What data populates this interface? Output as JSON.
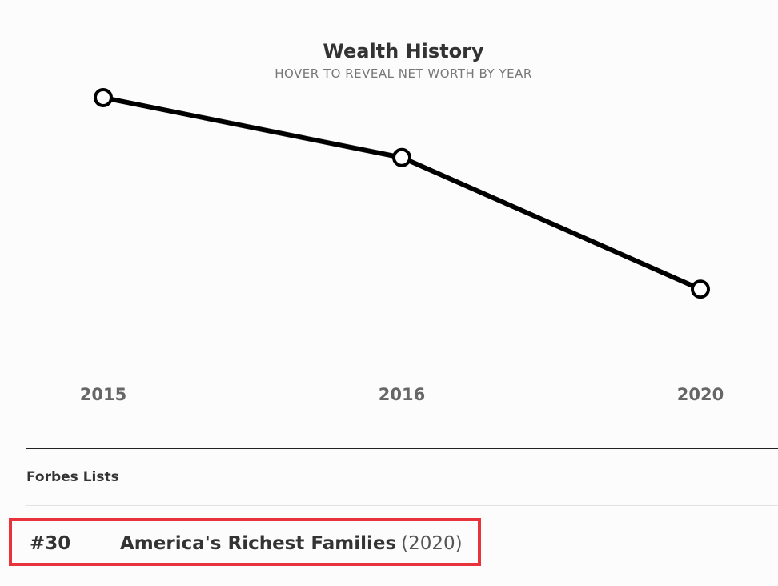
{
  "chart_data": {
    "type": "line",
    "title": "Wealth History",
    "subtitle": "HOVER TO REVEAL NET WORTH BY YEAR",
    "categories": [
      "2015",
      "2016",
      "2020"
    ],
    "series": [
      {
        "values": [
          100,
          75,
          20
        ]
      }
    ],
    "ylim": [
      0,
      100
    ],
    "grid": false,
    "line_color": "#000000",
    "marker_fill": "#ffffff"
  },
  "forbes_lists": {
    "heading": "Forbes Lists",
    "items": [
      {
        "rank": "#30",
        "name": "America's Richest Families",
        "year": "(2020)"
      }
    ]
  },
  "colors": {
    "highlight_border": "#e8323c"
  }
}
